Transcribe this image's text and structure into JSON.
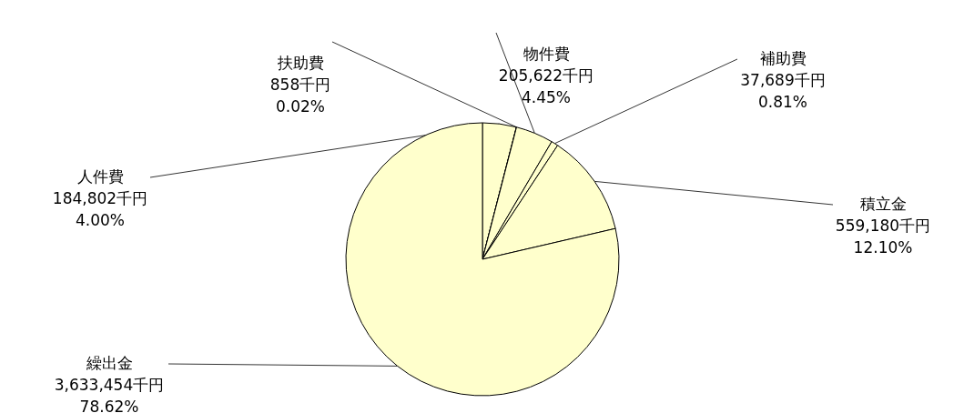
{
  "chart_data": {
    "type": "pie",
    "categories": [
      "人件費",
      "扶助費",
      "物件費",
      "補助費",
      "積立金",
      "繰出金"
    ],
    "values": [
      184802,
      858,
      205622,
      37689,
      559180,
      3633454
    ],
    "colors": [
      "#ffffcc",
      "#ffffcc",
      "#ffffcc",
      "#ffffcc",
      "#ffffcc",
      "#ffffcc"
    ],
    "value_labels": [
      "184,802千円\n4.00%",
      "858千円\n0.02%",
      "205,622千円\n4.45%",
      "37,689千円\n0.81%",
      "559,180千円\n12.10%",
      "3,633,454千円\n78.62%"
    ]
  }
}
